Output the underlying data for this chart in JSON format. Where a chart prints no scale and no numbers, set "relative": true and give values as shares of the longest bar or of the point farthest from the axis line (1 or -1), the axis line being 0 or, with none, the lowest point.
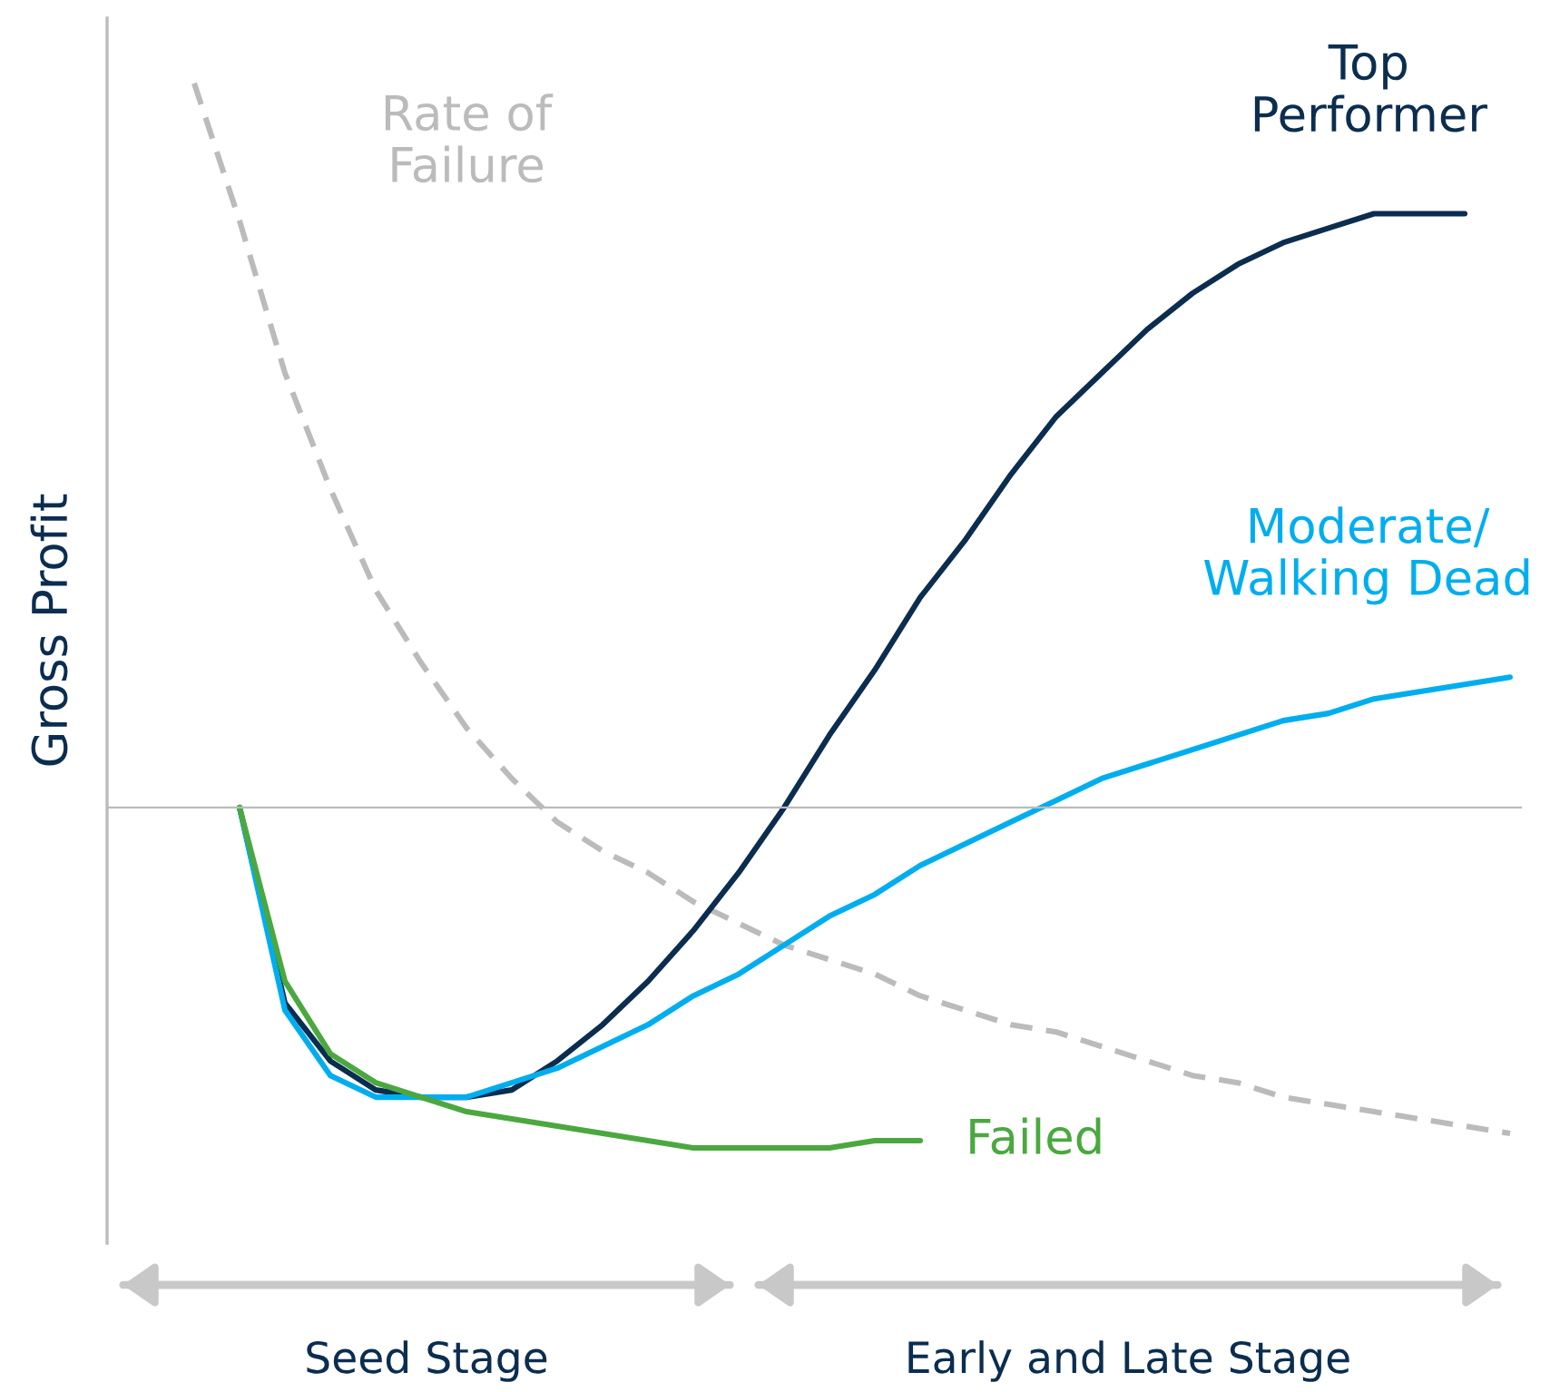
{
  "chart_data": {
    "type": "line",
    "relative": true,
    "ylabel": "Gross Profit",
    "legend": false,
    "marker": "none",
    "categories": [
      null,
      null,
      null,
      null,
      null,
      null,
      null,
      null,
      null,
      null,
      null,
      null,
      null,
      null,
      null,
      null,
      null,
      null,
      null,
      null,
      null,
      null,
      null,
      null,
      null,
      null,
      null,
      null,
      null,
      null
    ],
    "series": [
      {
        "name": "Rate of\nFailure",
        "color": "#bbbbbb",
        "line_style": "dashed",
        "values": [
          1.0,
          0.81,
          0.6,
          0.44,
          0.3,
          0.2,
          0.11,
          0.04,
          -0.02,
          -0.06,
          -0.09,
          -0.13,
          -0.16,
          -0.19,
          -0.21,
          -0.23,
          -0.26,
          -0.28,
          -0.3,
          -0.31,
          -0.33,
          -0.35,
          -0.37,
          -0.38,
          -0.4,
          -0.41,
          -0.42,
          -0.43,
          -0.44,
          -0.45
        ]
      },
      {
        "name": "Top\nPerformer",
        "color": "#0b2d4f",
        "line_style": "solid",
        "values": [
          null,
          0,
          -0.27,
          -0.35,
          -0.39,
          -0.4,
          -0.4,
          -0.39,
          -0.35,
          -0.3,
          -0.24,
          -0.17,
          -0.09,
          0.0,
          0.1,
          0.19,
          0.29,
          0.37,
          0.46,
          0.54,
          0.6,
          0.66,
          0.71,
          0.75,
          0.78,
          0.8,
          0.82,
          0.82,
          0.82,
          null
        ]
      },
      {
        "name": "Moderate/\nWalking Dead",
        "color": "#00aeef",
        "line_style": "solid",
        "values": [
          null,
          0,
          -0.28,
          -0.37,
          -0.4,
          -0.4,
          -0.4,
          -0.38,
          -0.36,
          -0.33,
          -0.3,
          -0.26,
          -0.23,
          -0.19,
          -0.15,
          -0.12,
          -0.08,
          -0.05,
          -0.02,
          0.01,
          0.04,
          0.06,
          0.08,
          0.1,
          0.12,
          0.13,
          0.15,
          0.16,
          0.17,
          0.18
        ]
      },
      {
        "name": "Failed",
        "color": "#4aa83f",
        "line_style": "solid",
        "values": [
          null,
          0,
          -0.24,
          -0.34,
          -0.38,
          -0.4,
          -0.42,
          -0.43,
          -0.44,
          -0.45,
          -0.46,
          -0.47,
          -0.47,
          -0.47,
          -0.47,
          -0.46,
          -0.46,
          null,
          null,
          null,
          null,
          null,
          null,
          null,
          null,
          null,
          null,
          null,
          null,
          null
        ]
      }
    ],
    "annotations": [
      "Seed Stage",
      "Early and Late Stage"
    ]
  }
}
